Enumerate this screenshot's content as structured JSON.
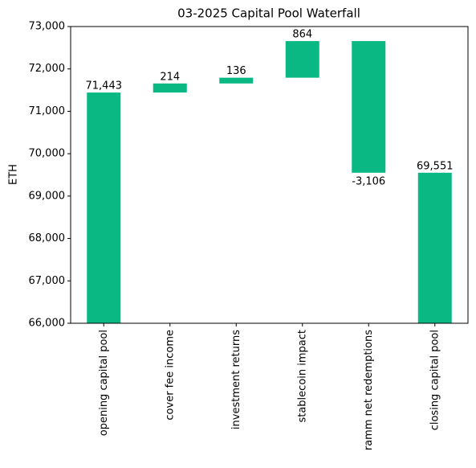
{
  "chart_data": {
    "type": "waterfall",
    "title": "03-2025 Capital Pool Waterfall",
    "y_label": "ETH",
    "categories": [
      "opening capital pool",
      "cover fee income",
      "investment returns",
      "stablecoin impact",
      "ramm net redemptions",
      "closing capital pool"
    ],
    "values": [
      71443,
      214,
      136,
      864,
      -3106,
      69551
    ],
    "value_labels": [
      "71,443",
      "214",
      "136",
      "864",
      "-3,106",
      "69,551"
    ],
    "color": "#0ab883",
    "ylim": [
      66000,
      73000
    ],
    "yticks": [
      {
        "value": 66000,
        "label": "66,000"
      },
      {
        "value": 67000,
        "label": "67,000"
      },
      {
        "value": 68000,
        "label": "68,000"
      },
      {
        "value": 69000,
        "label": "69,000"
      },
      {
        "value": 70000,
        "label": "70,000"
      },
      {
        "value": 71000,
        "label": "71,000"
      },
      {
        "value": 72000,
        "label": "72,000"
      },
      {
        "value": 73000,
        "label": "73,000"
      }
    ],
    "grid": false
  }
}
